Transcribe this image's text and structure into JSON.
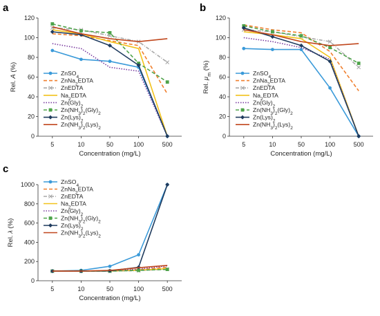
{
  "figure": {
    "series_styles": [
      {
        "color": "#3a9ad9",
        "dash": "",
        "marker": "circle"
      },
      {
        "color": "#f07e2c",
        "dash": "5,3",
        "marker": "none"
      },
      {
        "color": "#a8a8a8",
        "dash": "5,2,1,2",
        "marker": "x"
      },
      {
        "color": "#f2c21a",
        "dash": "",
        "marker": "none"
      },
      {
        "color": "#7a3ca0",
        "dash": "1.5,2",
        "marker": "none"
      },
      {
        "color": "#4ea34a",
        "dash": "5,3",
        "marker": "square"
      },
      {
        "color": "#1f3b5e",
        "dash": "",
        "marker": "diamond"
      },
      {
        "color": "#c0461c",
        "dash": "",
        "marker": "none"
      }
    ]
  },
  "chart_data": [
    {
      "panel_label": "a",
      "type": "line",
      "xlabel": "Concentration (mg/L)",
      "ylabel_prefix": "Rel. ",
      "ylabel_italic": "A",
      "ylabel_suffix": " (%)",
      "ylim": [
        0,
        120
      ],
      "yticks": [
        "0",
        "20",
        "40",
        "60",
        "80",
        "100",
        "120"
      ],
      "categories": [
        "5",
        "10",
        "50",
        "100",
        "500"
      ],
      "legend": [
        {
          "base": "ZnSO",
          "sub": "4",
          "tail": ""
        },
        {
          "base": "ZnNa",
          "sub": "2",
          "tail": "EDTA"
        },
        {
          "base": "ZnEDTA",
          "sub": "",
          "tail": ""
        },
        {
          "base": "Na",
          "sub": "2",
          "tail": "EDTA"
        },
        {
          "base": "Zn(Gly)",
          "sub": "2",
          "tail": ""
        },
        {
          "base": "Zn(NH",
          "sub": "3",
          "tail": ")",
          "sub2": "2",
          "tail2": "(Gly)",
          "sub3": "2"
        },
        {
          "base": "Zn(Lys)",
          "sub": "2",
          "tail": ""
        },
        {
          "base": "Zn(NH",
          "sub": "3",
          "tail": ")",
          "sub2": "2",
          "tail2": "(Lys)",
          "sub3": "2"
        }
      ],
      "series": [
        {
          "values": [
            87,
            78,
            76,
            70,
            0
          ]
        },
        {
          "values": [
            104,
            102,
            97,
            92,
            43
          ]
        },
        {
          "values": [
            110,
            108,
            102,
            96,
            75
          ]
        },
        {
          "values": [
            108,
            104,
            96,
            89,
            0
          ]
        },
        {
          "values": [
            94,
            89,
            70,
            66,
            0
          ]
        },
        {
          "values": [
            114,
            107,
            105,
            74,
            55
          ]
        },
        {
          "values": [
            106,
            103,
            92,
            72,
            0
          ]
        },
        {
          "values": [
            111,
            104,
            99,
            96,
            99
          ]
        }
      ]
    },
    {
      "panel_label": "b",
      "type": "line",
      "xlabel": "Concentration (mg/L)",
      "ylabel_prefix": "Rel. ",
      "ylabel_italic": "μ",
      "ylabel_sub": "m",
      "ylabel_suffix": " (%)",
      "ylim": [
        0,
        120
      ],
      "yticks": [
        "0",
        "20",
        "40",
        "60",
        "80",
        "100",
        "120"
      ],
      "categories": [
        "5",
        "10",
        "50",
        "100",
        "500"
      ],
      "legend": [
        {
          "base": "ZnSO",
          "sub": "4",
          "tail": ""
        },
        {
          "base": "ZnNa",
          "sub": "2",
          "tail": "EDTA"
        },
        {
          "base": "ZnEDTA",
          "sub": "",
          "tail": ""
        },
        {
          "base": "Na",
          "sub": "2",
          "tail": "EDTA"
        },
        {
          "base": "Zn(Gly)",
          "sub": "2",
          "tail": ""
        },
        {
          "base": "Zn(NH",
          "sub": "3",
          "tail": ")",
          "sub2": "2",
          "tail2": "(Gly)",
          "sub3": "2"
        },
        {
          "base": "Zn(Lys)",
          "sub": "2",
          "tail": ""
        },
        {
          "base": "Zn(NH",
          "sub": "3",
          "tail": ")",
          "sub2": "2",
          "tail2": "(Lys)",
          "sub3": "2"
        }
      ],
      "series": [
        {
          "values": [
            89,
            88,
            88,
            49,
            0
          ]
        },
        {
          "values": [
            113,
            108,
            105,
            86,
            46
          ]
        },
        {
          "values": [
            108,
            106,
            101,
            96,
            70
          ]
        },
        {
          "values": [
            106,
            103,
            99,
            80,
            0
          ]
        },
        {
          "values": [
            100,
            96,
            90,
            78,
            0
          ]
        },
        {
          "values": [
            112,
            106,
            102,
            90,
            74
          ]
        },
        {
          "values": [
            110,
            101,
            92,
            76,
            0
          ]
        },
        {
          "values": [
            108,
            103,
            96,
            92,
            94
          ]
        }
      ]
    },
    {
      "panel_label": "c",
      "type": "line",
      "xlabel": "Concentration (mg/L)",
      "ylabel_prefix": "Rel. ",
      "ylabel_italic": "λ",
      "ylabel_suffix": " (%)",
      "ylim": [
        0,
        1000
      ],
      "yticks": [
        "0",
        "200",
        "400",
        "600",
        "800",
        "1000"
      ],
      "categories": [
        "5",
        "10",
        "50",
        "100",
        "500"
      ],
      "legend": [
        {
          "base": "ZnSO",
          "sub": "4",
          "tail": ""
        },
        {
          "base": "ZnNa",
          "sub": "2",
          "tail": "EDTA"
        },
        {
          "base": "ZnEDTA",
          "sub": "",
          "tail": ""
        },
        {
          "base": "Na",
          "sub": "2",
          "tail": "EDTA"
        },
        {
          "base": "Zn(Gly)",
          "sub": "2",
          "tail": ""
        },
        {
          "base": "Zn(NH",
          "sub": "3",
          "tail": ")",
          "sub2": "2",
          "tail2": "(Gly)",
          "sub3": "2"
        },
        {
          "base": "Zn(Lys)",
          "sub": "2",
          "tail": ""
        },
        {
          "base": "Zn(NH",
          "sub": "3",
          "tail": ")",
          "sub2": "2",
          "tail2": "(Lys)",
          "sub3": "2"
        }
      ],
      "series": [
        {
          "values": [
            100,
            108,
            150,
            270,
            1000
          ]
        },
        {
          "values": [
            100,
            100,
            102,
            115,
            140
          ]
        },
        {
          "values": [
            100,
            100,
            100,
            105,
            120
          ]
        },
        {
          "values": [
            100,
            100,
            101,
            110,
            125
          ]
        },
        {
          "values": [
            100,
            100,
            105,
            120,
            155
          ]
        },
        {
          "values": [
            100,
            100,
            100,
            108,
            118
          ]
        },
        {
          "values": [
            100,
            100,
            103,
            140,
            1000
          ]
        },
        {
          "values": [
            100,
            100,
            108,
            135,
            160
          ]
        }
      ]
    }
  ]
}
